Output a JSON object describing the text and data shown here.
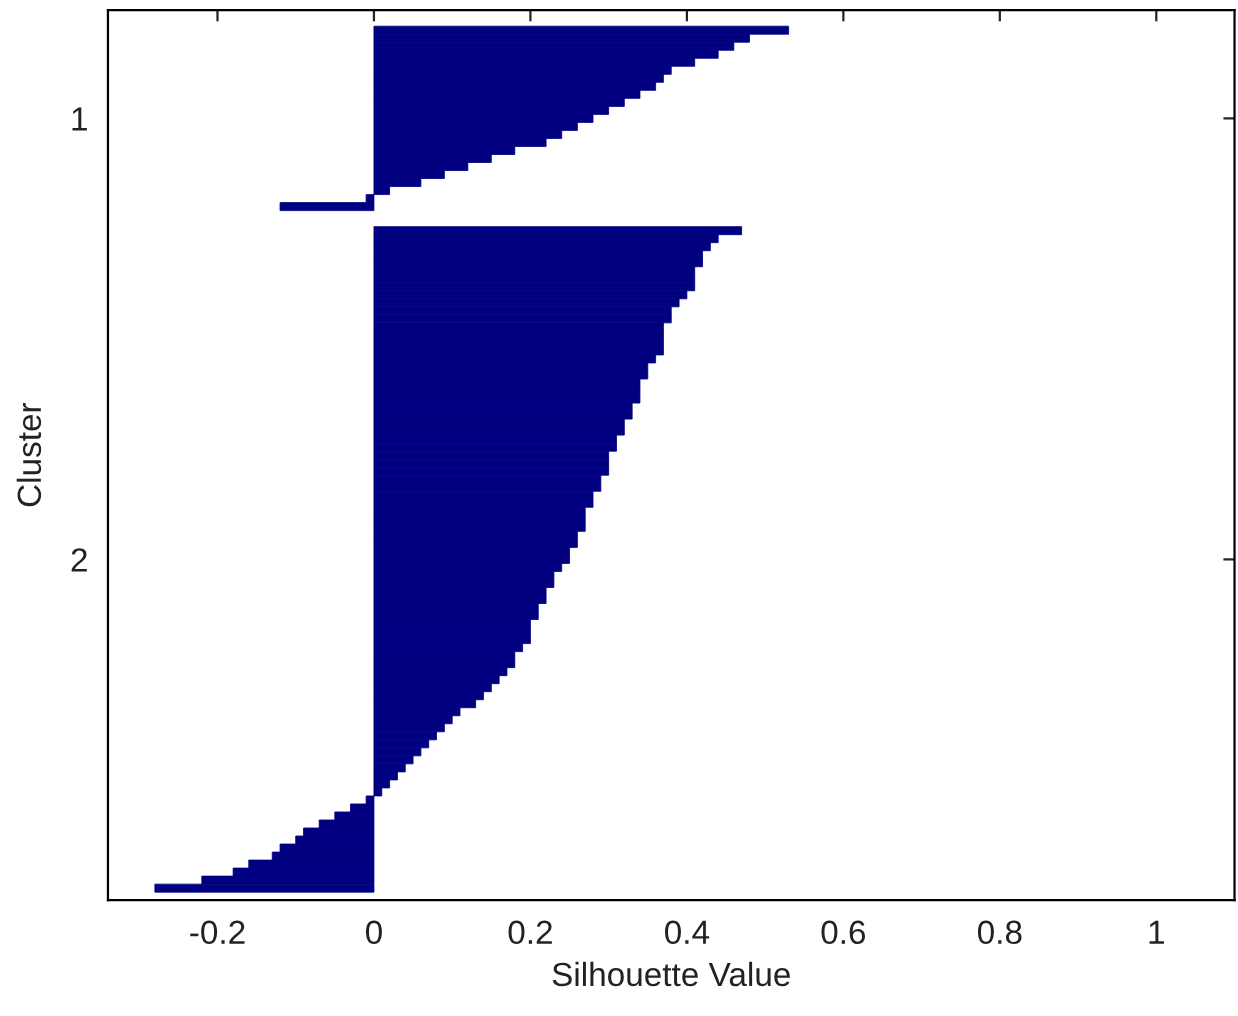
{
  "chart_data": {
    "type": "bar",
    "orientation": "horizontal",
    "xlabel": "Silhouette Value",
    "ylabel": "Cluster",
    "categories": [
      null,
      null,
      null,
      null,
      null,
      null,
      null,
      null,
      null,
      null,
      null,
      null,
      null,
      "1",
      null,
      null,
      null,
      null,
      null,
      null,
      null,
      null,
      null,
      null,
      null,
      null,
      null,
      null,
      null,
      null,
      null,
      null,
      null,
      null,
      null,
      null,
      null,
      null,
      null,
      null,
      null,
      null,
      null,
      null,
      null,
      null,
      null,
      null,
      null,
      null,
      null,
      null,
      null,
      null,
      null,
      null,
      null,
      null,
      null,
      null,
      null,
      null,
      null,
      null,
      null,
      null,
      null,
      null,
      "2",
      null,
      null,
      null,
      null,
      null,
      null,
      null,
      null,
      null,
      null,
      null,
      null,
      null,
      null,
      null,
      null,
      null,
      null,
      null,
      null,
      null,
      null,
      null,
      null,
      null,
      null,
      null,
      null,
      null,
      null,
      null,
      null,
      null,
      null,
      null,
      null,
      null,
      null,
      null,
      null,
      null,
      null
    ],
    "series": [
      {
        "color": "#000080",
        "values": [
          null,
          null,
          0.53,
          0.48,
          0.46,
          0.44,
          0.41,
          0.38,
          0.37,
          0.36,
          0.34,
          0.32,
          0.3,
          0.28,
          0.26,
          0.24,
          0.22,
          0.18,
          0.15,
          0.12,
          0.09,
          0.06,
          0.02,
          -0.01,
          -0.12,
          null,
          null,
          0.47,
          0.44,
          0.43,
          0.42,
          0.42,
          0.41,
          0.41,
          0.41,
          0.4,
          0.39,
          0.38,
          0.38,
          0.37,
          0.37,
          0.37,
          0.37,
          0.36,
          0.35,
          0.35,
          0.34,
          0.34,
          0.34,
          0.33,
          0.33,
          0.32,
          0.32,
          0.31,
          0.31,
          0.3,
          0.3,
          0.3,
          0.29,
          0.29,
          0.28,
          0.28,
          0.27,
          0.27,
          0.27,
          0.26,
          0.26,
          0.25,
          0.25,
          0.24,
          0.23,
          0.23,
          0.22,
          0.22,
          0.21,
          0.21,
          0.2,
          0.2,
          0.2,
          0.19,
          0.18,
          0.18,
          0.17,
          0.16,
          0.15,
          0.14,
          0.13,
          0.11,
          0.1,
          0.09,
          0.08,
          0.07,
          0.06,
          0.05,
          0.04,
          0.03,
          0.02,
          0.01,
          -0.01,
          -0.03,
          -0.05,
          -0.07,
          -0.09,
          -0.1,
          -0.12,
          -0.13,
          -0.16,
          -0.18,
          -0.22,
          -0.28,
          null
        ]
      }
    ],
    "xlim": [
      -0.34,
      1.1
    ],
    "xticks": [
      -0.2,
      0,
      0.2,
      0.4,
      0.6,
      0.8,
      1
    ]
  }
}
